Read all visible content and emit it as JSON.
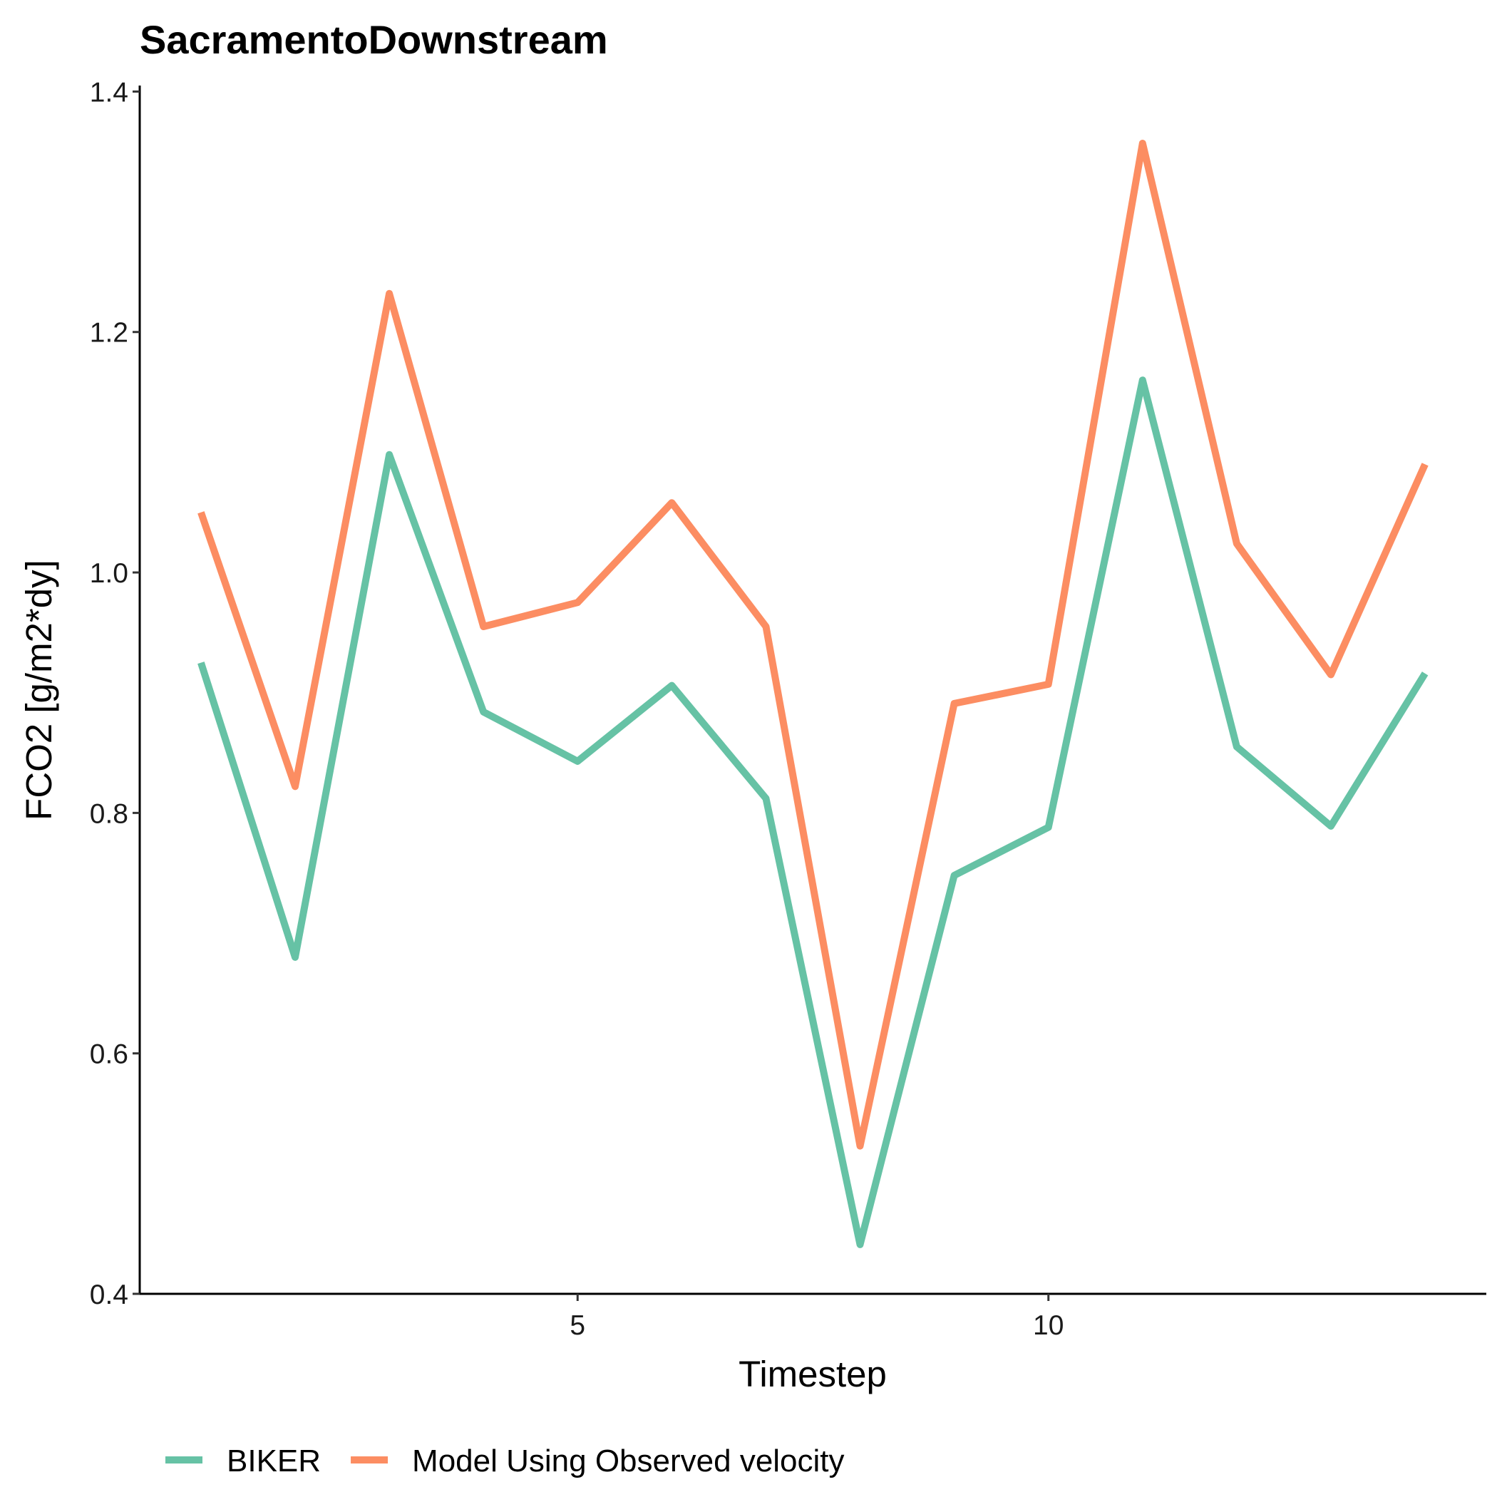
{
  "chart_data": {
    "type": "line",
    "title": "SacramentoDownstream",
    "xlabel": "Timestep",
    "ylabel": "FCO2 [g/m2*dy]",
    "x": [
      1,
      2,
      3,
      4,
      5,
      6,
      7,
      8,
      9,
      10,
      11,
      12,
      13,
      14
    ],
    "xlim": [
      0.35,
      14.65
    ],
    "ylim": [
      0.4,
      1.405
    ],
    "xticks": [
      5,
      10
    ],
    "xtick_labels": [
      "5",
      "10"
    ],
    "yticks": [
      0.4,
      0.6,
      0.8,
      1.0,
      1.2,
      1.4
    ],
    "ytick_labels": [
      "0.4",
      "0.6",
      "0.8",
      "1.0",
      "1.2",
      "1.4"
    ],
    "grid": false,
    "legend_position": "bottom",
    "series": [
      {
        "name": "BIKER",
        "color": "#66C2A5",
        "values": [
          0.925,
          0.68,
          1.098,
          0.884,
          0.843,
          0.906,
          0.812,
          0.441,
          0.748,
          0.788,
          1.16,
          0.855,
          0.789,
          0.916
        ]
      },
      {
        "name": "Model Using Observed velocity",
        "color": "#FC8D62",
        "values": [
          1.05,
          0.822,
          1.232,
          0.955,
          0.975,
          1.058,
          0.955,
          0.523,
          0.891,
          0.907,
          1.357,
          1.024,
          0.915,
          1.09
        ]
      }
    ]
  }
}
